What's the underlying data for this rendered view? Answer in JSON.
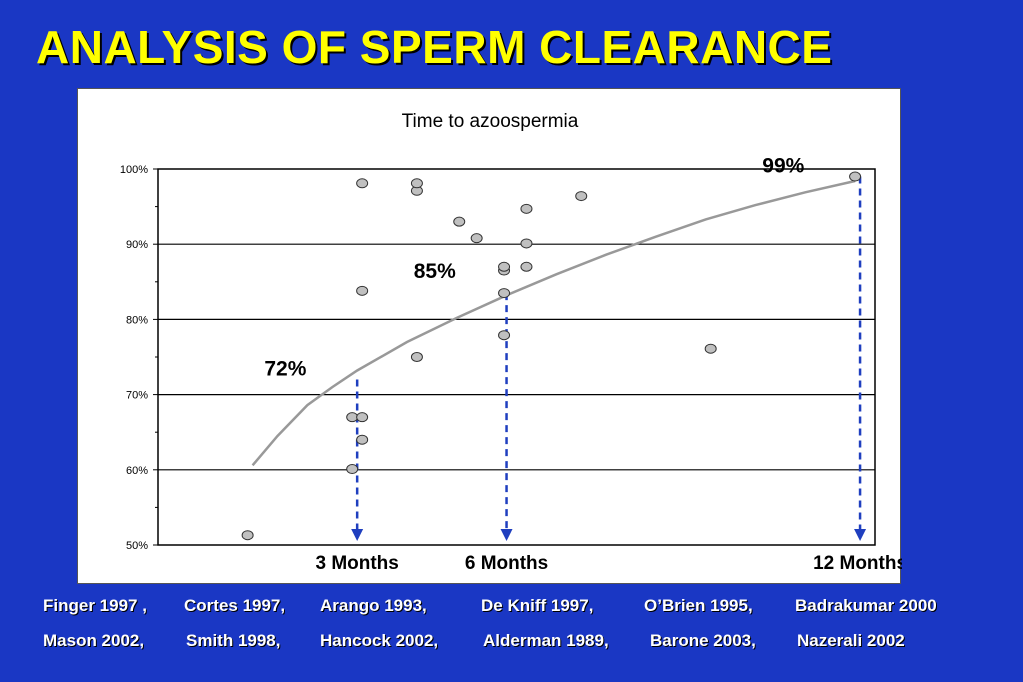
{
  "slide": {
    "title": "ANALYSIS OF SPERM CLEARANCE"
  },
  "references": {
    "row1": [
      "Finger 1997 ,",
      "Cortes 1997,",
      "Arango 1993,",
      "De Kniff 1997,",
      "O’Brien 1995,",
      "Badrakumar 2000"
    ],
    "row2": [
      "Mason 2002,",
      "Smith 1998,",
      "Hancock 2002,",
      "Alderman 1989,",
      "Barone 2003,",
      "Nazerali 2002"
    ]
  },
  "colors": {
    "background": "#1a37c4",
    "title": "#ffff00",
    "arrow": "#1f3fbf",
    "curve": "#999999",
    "points": "#c0c0c0"
  },
  "chart_data": {
    "type": "scatter",
    "title": "Time to azoospermia",
    "xlabel": "",
    "ylabel": "",
    "ylim": [
      50,
      100
    ],
    "xlim": [
      0,
      14.4
    ],
    "yticks": [
      "50%",
      "60%",
      "70%",
      "80%",
      "90%",
      "100%"
    ],
    "ytick_values": [
      50,
      60,
      70,
      80,
      90,
      100
    ],
    "grid": true,
    "points": [
      {
        "x": 1.8,
        "y": 51.3
      },
      {
        "x": 3.9,
        "y": 60.1
      },
      {
        "x": 3.9,
        "y": 67.0
      },
      {
        "x": 4.1,
        "y": 67.0
      },
      {
        "x": 4.1,
        "y": 64.0
      },
      {
        "x": 4.1,
        "y": 83.8
      },
      {
        "x": 4.1,
        "y": 98.1
      },
      {
        "x": 5.2,
        "y": 75.0
      },
      {
        "x": 5.2,
        "y": 97.1
      },
      {
        "x": 5.2,
        "y": 98.1
      },
      {
        "x": 6.05,
        "y": 93.0
      },
      {
        "x": 6.4,
        "y": 90.8
      },
      {
        "x": 6.95,
        "y": 77.9
      },
      {
        "x": 6.95,
        "y": 83.5
      },
      {
        "x": 6.95,
        "y": 86.5
      },
      {
        "x": 6.95,
        "y": 87.0
      },
      {
        "x": 7.4,
        "y": 87.0
      },
      {
        "x": 7.4,
        "y": 90.1
      },
      {
        "x": 7.4,
        "y": 94.7
      },
      {
        "x": 8.5,
        "y": 96.4
      },
      {
        "x": 11.1,
        "y": 76.1
      },
      {
        "x": 14.0,
        "y": 99.0
      }
    ],
    "trend_curve": [
      [
        1.9,
        60.6
      ],
      [
        2.4,
        64.5
      ],
      [
        3.0,
        68.6
      ],
      [
        3.5,
        71.0
      ],
      [
        4.0,
        73.2
      ],
      [
        5.0,
        77.0
      ],
      [
        6.0,
        80.2
      ],
      [
        7.0,
        83.2
      ],
      [
        8.0,
        86.0
      ],
      [
        9.0,
        88.6
      ],
      [
        10.0,
        91.0
      ],
      [
        11.0,
        93.3
      ],
      [
        12.0,
        95.2
      ],
      [
        13.0,
        96.9
      ],
      [
        14.0,
        98.4
      ]
    ],
    "annotations": [
      {
        "label": "72%",
        "x": 3.0,
        "y": 72.0,
        "arrow_x": 4.0,
        "arrow_y_from": 72.0,
        "xlabel": "3 Months"
      },
      {
        "label": "85%",
        "x": 6.0,
        "y": 85.0,
        "arrow_x": 7.0,
        "arrow_y_from": 83.5,
        "xlabel": "6 Months"
      },
      {
        "label": "99%",
        "x": 13.0,
        "y": 99.0,
        "arrow_x": 14.1,
        "arrow_y_from": 99.0,
        "xlabel": "12 Months"
      }
    ]
  }
}
